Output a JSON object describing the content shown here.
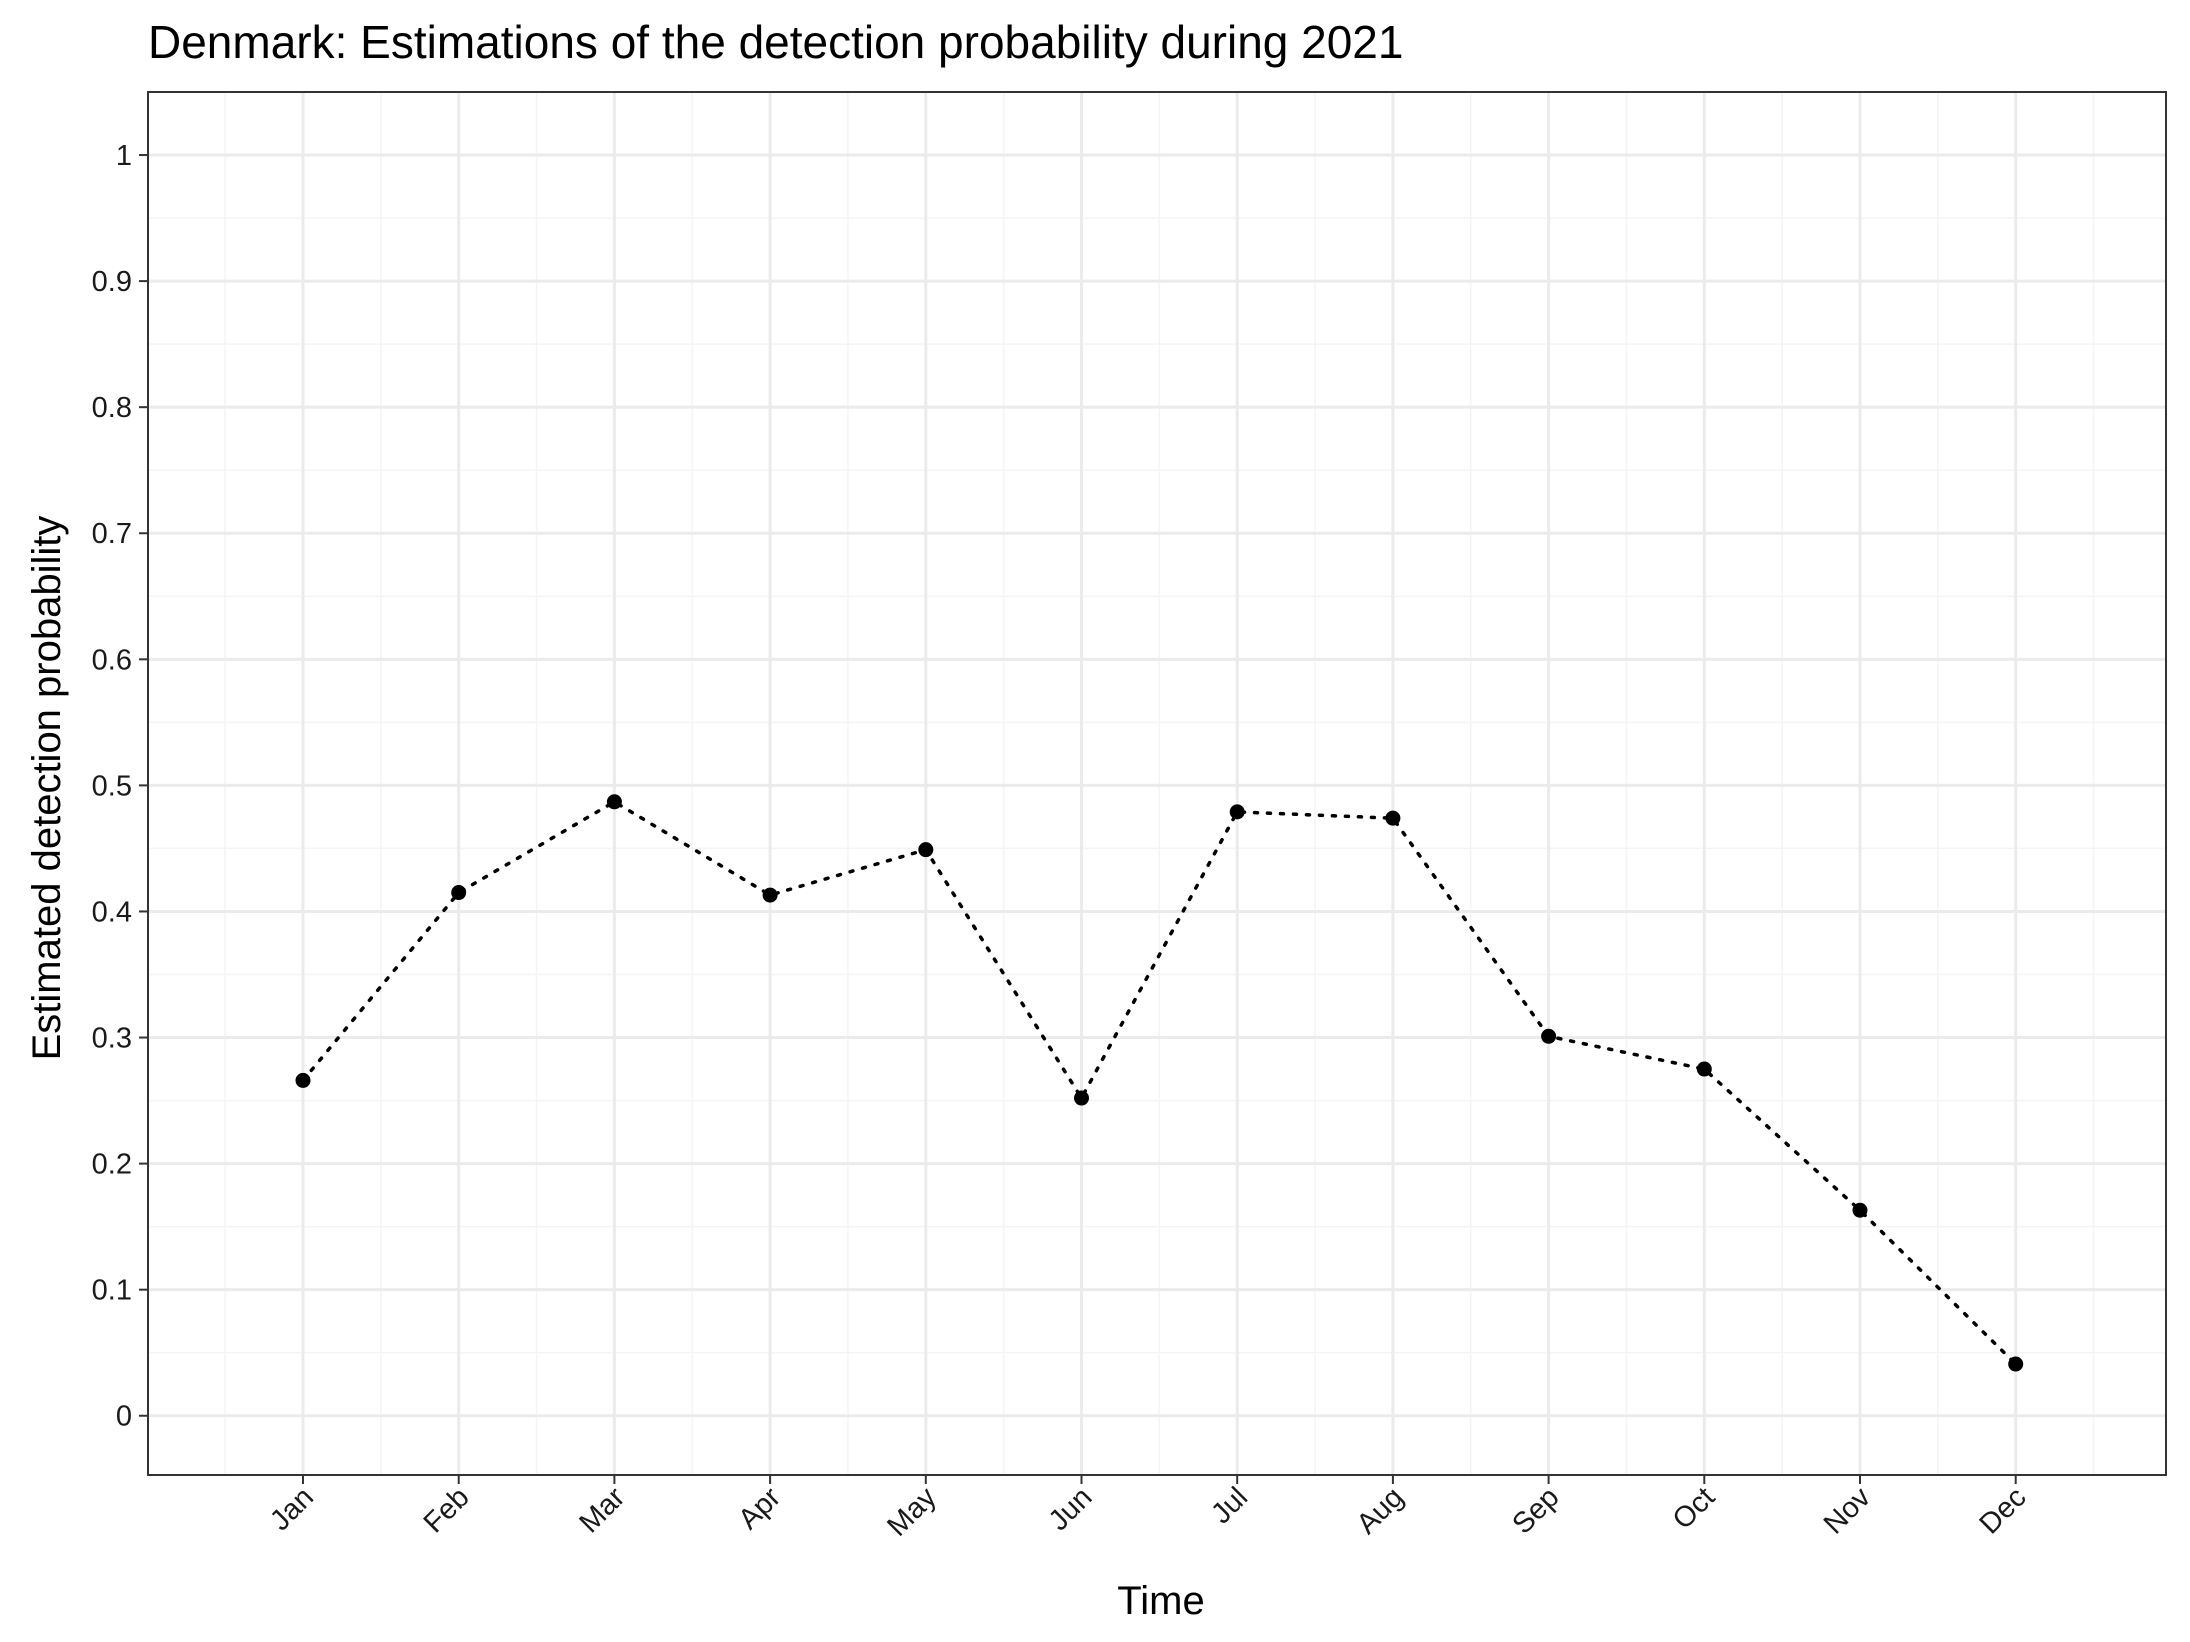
{
  "chart_data": {
    "type": "line",
    "title": "Denmark: Estimations of the detection probability during 2021",
    "xlabel": "Time",
    "ylabel": "Estimated detection probability",
    "categories": [
      "Jan",
      "Feb",
      "Mar",
      "Apr",
      "May",
      "Jun",
      "Jul",
      "Aug",
      "Sep",
      "Oct",
      "Nov",
      "Dec"
    ],
    "series": [
      {
        "values": [
          0.266,
          0.415,
          0.487,
          0.413,
          0.449,
          0.252,
          0.479,
          0.474,
          0.301,
          0.275,
          0.163,
          0.041
        ]
      }
    ],
    "y_ticks": [
      "0",
      "0.1",
      "0.2",
      "0.3",
      "0.4",
      "0.5",
      "0.6",
      "0.7",
      "0.8",
      "0.9",
      "1"
    ],
    "ylim": [
      -0.047,
      1.05
    ],
    "grid": true,
    "line_style": "dotted",
    "marker": "circle",
    "colors": {
      "series": "#000000",
      "grid_major": "#ebebeb",
      "grid_minor": "#f4f4f4",
      "panel_border": "#333333"
    }
  }
}
